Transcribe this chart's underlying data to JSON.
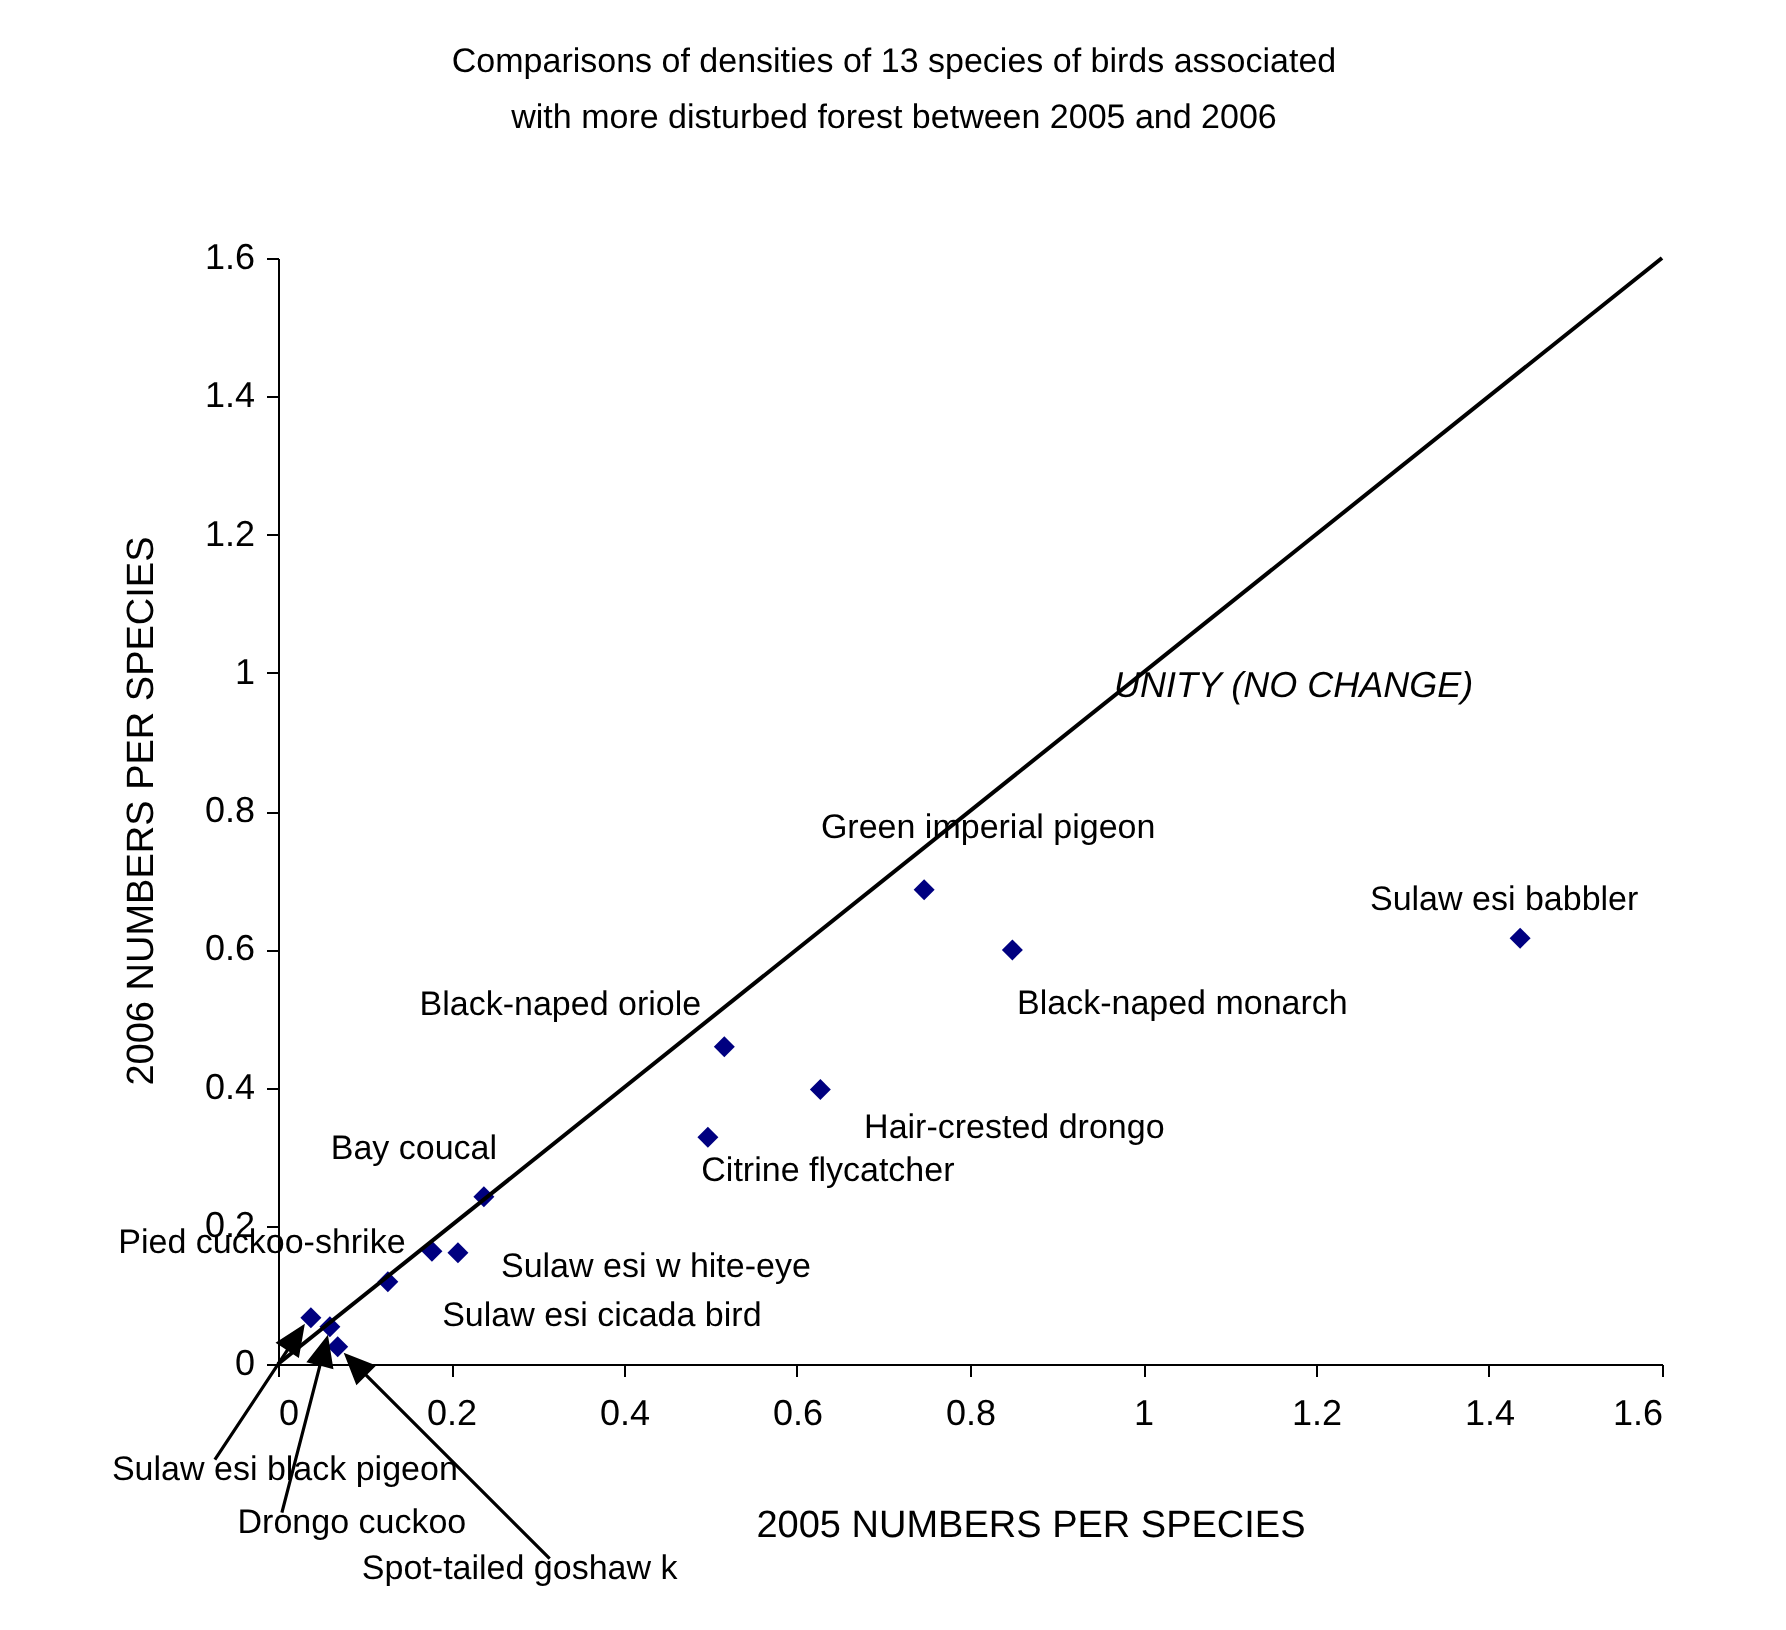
{
  "chart_data": {
    "type": "scatter",
    "title": "Comparisons of densities of 13 species of birds associated\nwith more disturbed forest between 2005 and 2006",
    "xlabel": "2005 NUMBERS PER SPECIES",
    "ylabel": "2006 NUMBERS PER SPECIES",
    "xlim": [
      0,
      1.6
    ],
    "ylim": [
      0,
      1.6
    ],
    "xticks": [
      0,
      0.2,
      0.4,
      0.6,
      0.8,
      1,
      1.2,
      1.4,
      1.6
    ],
    "yticks": [
      0,
      0.2,
      0.4,
      0.6,
      0.8,
      1,
      1.2,
      1.4,
      1.6
    ],
    "grid": false,
    "series": [
      {
        "type": "scatter",
        "marker": "diamond",
        "color": "#000080",
        "x": [
          1.436,
          0.849,
          0.747,
          0.627,
          0.497,
          0.516,
          0.238,
          0.178,
          0.208,
          0.127,
          0.038,
          0.06,
          0.069
        ],
        "values": [
          0.616,
          0.599,
          0.686,
          0.397,
          0.328,
          0.459,
          0.242,
          0.163,
          0.161,
          0.119,
          0.067,
          0.054,
          0.025
        ]
      },
      {
        "type": "line",
        "name": "UNITY (NO CHANGE)",
        "color": "#000000",
        "x": [
          0,
          1.6
        ],
        "values": [
          0,
          1.6
        ]
      }
    ],
    "annotations": [
      {
        "text": "Sulaw esi babbler",
        "x": 1.436,
        "y": 0.616
      },
      {
        "text": "Black-naped monarch",
        "x": 0.849,
        "y": 0.599
      },
      {
        "text": "Green imperial pigeon",
        "x": 0.747,
        "y": 0.686
      },
      {
        "text": "Hair-crested drongo",
        "x": 0.627,
        "y": 0.397
      },
      {
        "text": "Citrine flycatcher",
        "x": 0.497,
        "y": 0.328
      },
      {
        "text": "Black-naped oriole",
        "x": 0.516,
        "y": 0.459
      },
      {
        "text": "Bay coucal",
        "x": 0.238,
        "y": 0.242
      },
      {
        "text": "Pied cuckoo-shrike",
        "x": 0.178,
        "y": 0.163
      },
      {
        "text": "Sulaw esi w hite-eye",
        "x": 0.208,
        "y": 0.161
      },
      {
        "text": "Sulaw esi cicada bird",
        "x": 0.127,
        "y": 0.119
      },
      "Sulaw esi black pigeon",
      "Drongo cuckoo",
      "Spot-tailed goshaw k"
    ]
  }
}
